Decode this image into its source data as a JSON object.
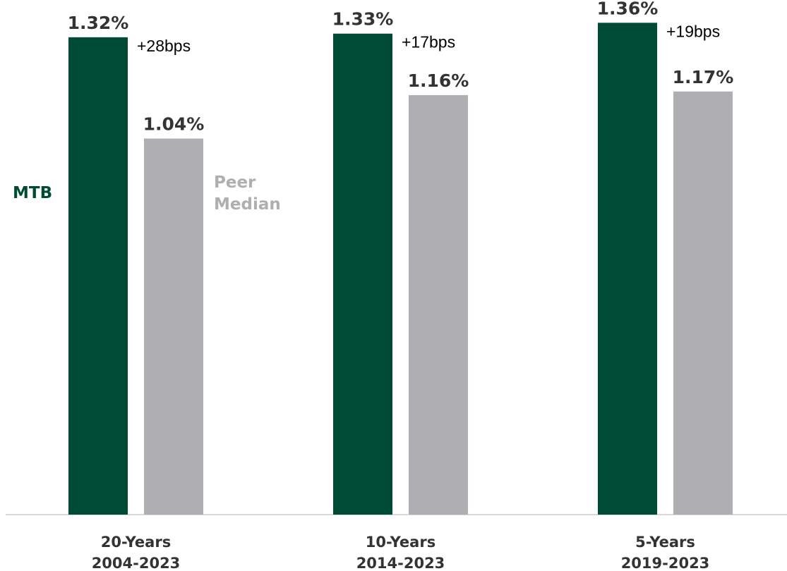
{
  "chart_data": {
    "type": "bar",
    "categories": [
      {
        "line1": "20-Years",
        "line2": "2004-2023"
      },
      {
        "line1": "10-Years",
        "line2": "2014-2023"
      },
      {
        "line1": "5-Years",
        "line2": "2019-2023"
      }
    ],
    "series": [
      {
        "name": "MTB",
        "color": "#004B35",
        "values": [
          1.32,
          1.33,
          1.36
        ],
        "labels": [
          "1.32%",
          "1.33%",
          "1.36%"
        ]
      },
      {
        "name_lines": [
          "Peer",
          "Median"
        ],
        "color": "#AFAEB3",
        "values": [
          1.04,
          1.16,
          1.17
        ],
        "labels": [
          "1.04%",
          "1.16%",
          "1.17%"
        ]
      }
    ],
    "differences": [
      "+28bps",
      "+17bps",
      "+19bps"
    ],
    "ylim": [
      0,
      1.6
    ],
    "grid": false,
    "legend": "inline-left-of-first-group"
  }
}
